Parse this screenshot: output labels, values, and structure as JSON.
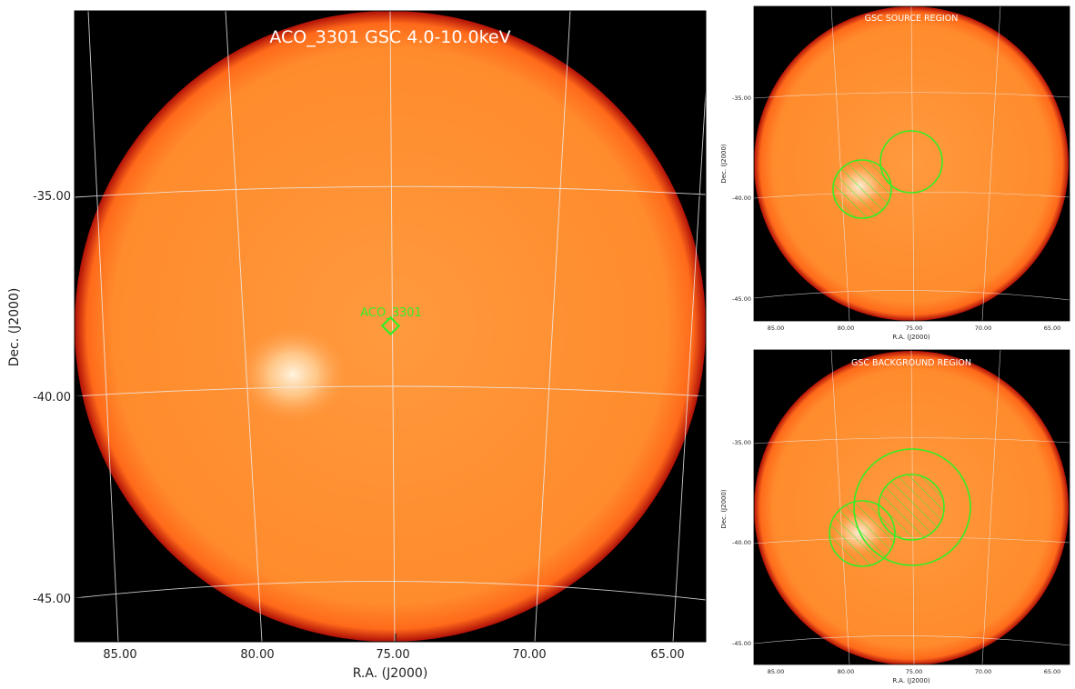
{
  "colors": {
    "background": "#000000",
    "disk": "#ff8a2a",
    "disk_edge": "#c0140a",
    "bright_spot": "#fff0d8",
    "grid": "#e8e8e8",
    "region": "#33ee22",
    "title_text": "#ffffff"
  },
  "main": {
    "title": "ACO_3301 GSC 4.0-10.0keV",
    "source_label": "ACO_3301",
    "marker_icon": "diamond-icon",
    "xlabel": "R.A. (J2000)",
    "ylabel": "Dec. (J2000)",
    "ra_ticks": [
      "85.00",
      "80.00",
      "75.00",
      "70.00",
      "65.00"
    ],
    "dec_ticks": [
      "-35.00",
      "-40.00",
      "-45.00"
    ]
  },
  "source_panel": {
    "title": "GSC SOURCE REGION",
    "xlabel": "R.A. (J2000)",
    "ylabel": "Dec. (J2000)",
    "ra_ticks": [
      "85.00",
      "80.00",
      "75.00",
      "70.00",
      "65.00"
    ],
    "dec_ticks": [
      "-35.00",
      "-40.00",
      "-45.00"
    ]
  },
  "background_panel": {
    "title": "GSC BACKGROUND REGION",
    "xlabel": "R.A. (J2000)",
    "ylabel": "Dec. (J2000)",
    "ra_ticks": [
      "85.00",
      "80.00",
      "75.00",
      "70.00",
      "65.00"
    ],
    "dec_ticks": [
      "-35.00",
      "-40.00",
      "-45.00"
    ]
  }
}
